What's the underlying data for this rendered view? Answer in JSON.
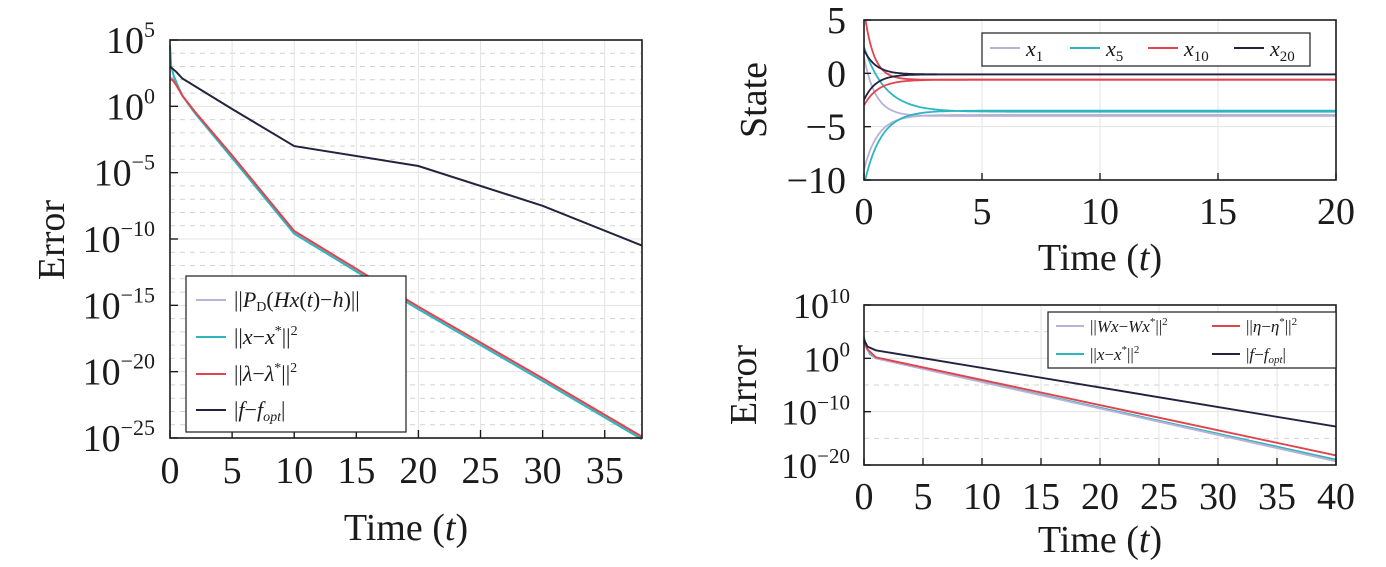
{
  "colors": {
    "lavender": "#b9b1d6",
    "teal": "#2db6bf",
    "red": "#e2434d",
    "navy": "#23233f"
  },
  "chart_data": [
    {
      "id": "left",
      "type": "line",
      "xlabel_main": "Time (",
      "xlabel_var": "t",
      "xlabel_end": ")",
      "ylabel": "Error",
      "y_scale": "log",
      "xlim": [
        0,
        38
      ],
      "ylim_exp": [
        -25,
        5
      ],
      "x_ticks": [
        "0",
        "5",
        "10",
        "15",
        "20",
        "25",
        "30",
        "35"
      ],
      "x_tick_values": [
        0,
        5,
        10,
        15,
        20,
        25,
        30,
        35
      ],
      "y_ticks": [
        {
          "base": "10",
          "exp": "5",
          "value": 5
        },
        {
          "base": "10",
          "exp": "0",
          "value": 0
        },
        {
          "base": "10",
          "exp": "−5",
          "value": -5
        },
        {
          "base": "10",
          "exp": "−10",
          "value": -10
        },
        {
          "base": "10",
          "exp": "−15",
          "value": -15
        },
        {
          "base": "10",
          "exp": "−20",
          "value": -20
        },
        {
          "base": "10",
          "exp": "−25",
          "value": -25
        }
      ],
      "grid": true,
      "legend_position": "bottom-left",
      "legend": [
        {
          "label": "||P_D(Hx(t)−h)||",
          "color": "#b9b1d6"
        },
        {
          "label": "||x−x*||²",
          "color": "#2db6bf"
        },
        {
          "label": "||λ−λ*||²",
          "color": "#e2434d"
        },
        {
          "label": "|f−f_opt|",
          "color": "#23233f"
        }
      ],
      "series": [
        {
          "color": "#b9b1d6",
          "x": [
            0,
            0.2,
            0.5,
            1,
            2,
            5,
            10,
            20,
            30,
            38
          ],
          "log10_y": [
            2.2,
            2.1,
            1.7,
            0.8,
            -0.4,
            -3.8,
            -9.5,
            -15.2,
            -20.6,
            -25.0
          ]
        },
        {
          "color": "#2db6bf",
          "x": [
            0,
            0.1,
            0.3,
            0.6,
            1,
            2,
            5,
            10,
            20,
            30,
            38
          ],
          "log10_y": [
            4.6,
            3.0,
            2.3,
            1.6,
            0.8,
            -0.5,
            -3.9,
            -9.6,
            -15.3,
            -20.7,
            -25.1
          ]
        },
        {
          "color": "#e2434d",
          "x": [
            0,
            0.2,
            0.5,
            1,
            2,
            5,
            10,
            20,
            30,
            38
          ],
          "log10_y": [
            2.0,
            2.0,
            1.6,
            0.8,
            -0.4,
            -3.7,
            -9.4,
            -15.1,
            -20.5,
            -24.9
          ]
        },
        {
          "color": "#23233f",
          "x": [
            0,
            0.5,
            1,
            5,
            10,
            20,
            30,
            38
          ],
          "log10_y": [
            3.0,
            2.6,
            2.1,
            -0.2,
            -3.0,
            -4.5,
            -7.5,
            -10.5
          ]
        }
      ]
    },
    {
      "id": "top-right",
      "type": "line",
      "xlabel_main": "Time (",
      "xlabel_var": "t",
      "xlabel_end": ")",
      "ylabel": "State",
      "xlim": [
        0,
        20
      ],
      "ylim": [
        -10,
        5
      ],
      "x_ticks": [
        "0",
        "5",
        "10",
        "15",
        "20"
      ],
      "x_tick_values": [
        0,
        5,
        10,
        15,
        20
      ],
      "y_ticks": [
        "5",
        "0",
        "−5",
        "−10"
      ],
      "y_tick_values": [
        5,
        0,
        -5,
        -10
      ],
      "grid": true,
      "legend_position": "top-right",
      "legend": [
        {
          "label": "x1",
          "base": "x",
          "sub": "1",
          "color": "#b9b1d6"
        },
        {
          "label": "x5",
          "base": "x",
          "sub": "5",
          "color": "#2db6bf"
        },
        {
          "label": "x10",
          "base": "x",
          "sub": "10",
          "color": "#e2434d"
        },
        {
          "label": "x20",
          "base": "x",
          "sub": "20",
          "color": "#23233f"
        }
      ],
      "series": [
        {
          "color": "#b9b1d6",
          "x0": 0,
          "y0": 1.5,
          "yinf": -4.0,
          "tau": 0.5
        },
        {
          "color": "#b9b1d6",
          "x0": 0,
          "y0": -9.0,
          "yinf": -3.9,
          "tau": 0.6
        },
        {
          "color": "#2db6bf",
          "x0": 0,
          "y0": -10.5,
          "yinf": -3.5,
          "tau": 0.7
        },
        {
          "color": "#2db6bf",
          "x0": 0,
          "y0": 2.5,
          "yinf": -3.6,
          "tau": 0.9
        },
        {
          "color": "#e2434d",
          "x0": 0,
          "y0": 6.0,
          "yinf": -0.6,
          "tau": 0.4
        },
        {
          "color": "#e2434d",
          "x0": 0,
          "y0": -3.0,
          "yinf": -0.6,
          "tau": 0.6
        },
        {
          "color": "#23233f",
          "x0": 0,
          "y0": 2.2,
          "yinf": -0.1,
          "tau": 0.5
        },
        {
          "color": "#23233f",
          "x0": 0,
          "y0": -2.5,
          "yinf": -0.1,
          "tau": 0.5
        }
      ]
    },
    {
      "id": "bottom-right",
      "type": "line",
      "xlabel_main": "Time (",
      "xlabel_var": "t",
      "xlabel_end": ")",
      "ylabel": "Error",
      "y_scale": "log",
      "xlim": [
        0,
        40
      ],
      "ylim_exp": [
        -20,
        10
      ],
      "x_ticks": [
        "0",
        "5",
        "10",
        "15",
        "20",
        "25",
        "30",
        "35",
        "40"
      ],
      "x_tick_values": [
        0,
        5,
        10,
        15,
        20,
        25,
        30,
        35,
        40
      ],
      "y_ticks": [
        {
          "base": "10",
          "exp": "10",
          "value": 10
        },
        {
          "base": "10",
          "exp": "0",
          "value": 0
        },
        {
          "base": "10",
          "exp": "−10",
          "value": -10
        },
        {
          "base": "10",
          "exp": "−20",
          "value": -20
        }
      ],
      "grid": true,
      "legend_position": "top-right",
      "legend": [
        {
          "label": "||Wx−Wx*||²",
          "color": "#b9b1d6"
        },
        {
          "label": "||η−η*||²",
          "color": "#e2434d"
        },
        {
          "label": "||x−x*||²",
          "color": "#2db6bf"
        },
        {
          "label": "|f−f_opt|",
          "color": "#23233f"
        }
      ],
      "series": [
        {
          "color": "#2db6bf",
          "x": [
            0,
            0.2,
            0.5,
            1,
            40
          ],
          "log10_y": [
            4.0,
            2.0,
            0.8,
            0.0,
            -19.0
          ]
        },
        {
          "color": "#b9b1d6",
          "x": [
            0,
            0.3,
            1,
            40
          ],
          "log10_y": [
            3.0,
            1.5,
            0.0,
            -19.3
          ]
        },
        {
          "color": "#e2434d",
          "x": [
            0,
            0.3,
            1,
            40
          ],
          "log10_y": [
            3.2,
            1.7,
            0.2,
            -18.2
          ]
        },
        {
          "color": "#23233f",
          "x": [
            0,
            0.3,
            1,
            40
          ],
          "log10_y": [
            3.5,
            2.2,
            1.5,
            -12.8
          ]
        }
      ]
    }
  ]
}
